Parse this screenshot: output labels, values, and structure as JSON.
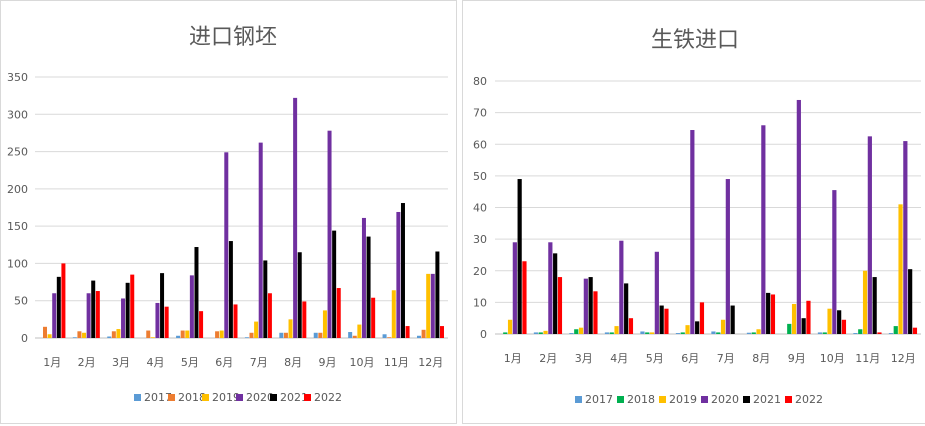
{
  "chart_data": [
    {
      "type": "bar",
      "title": "进口钢坯",
      "categories": [
        "1月",
        "2月",
        "3月",
        "4月",
        "5月",
        "6月",
        "7月",
        "8月",
        "9月",
        "10月",
        "11月",
        "12月"
      ],
      "ylim": [
        0,
        350
      ],
      "yticks": [
        0,
        50,
        100,
        150,
        200,
        250,
        300,
        350
      ],
      "grid": true,
      "legend": "bottom",
      "series": [
        {
          "name": "2017",
          "color": "#5b9bd5",
          "values": [
            0,
            1,
            2,
            0,
            3,
            0,
            1,
            7,
            7,
            8,
            5,
            3
          ]
        },
        {
          "name": "2018",
          "color": "#ed7d31",
          "values": [
            15,
            9,
            9,
            10,
            10,
            9,
            7,
            7,
            7,
            3,
            1,
            11
          ]
        },
        {
          "name": "2019",
          "color": "#ffc000",
          "values": [
            5,
            7,
            12,
            1,
            10,
            10,
            22,
            25,
            37,
            18,
            64,
            86
          ]
        },
        {
          "name": "2020",
          "color": "#7030a0",
          "values": [
            60,
            60,
            53,
            47,
            84,
            249,
            262,
            322,
            278,
            161,
            169,
            86
          ]
        },
        {
          "name": "2021",
          "color": "#000000",
          "values": [
            82,
            77,
            74,
            87,
            122,
            130,
            104,
            115,
            144,
            136,
            181,
            116
          ]
        },
        {
          "name": "2022",
          "color": "#ff0000",
          "values": [
            100,
            63,
            85,
            42,
            36,
            45,
            60,
            49,
            67,
            54,
            16,
            16
          ]
        }
      ]
    },
    {
      "type": "bar",
      "title": "生铁进口",
      "categories": [
        "1月",
        "2月",
        "3月",
        "4月",
        "5月",
        "6月",
        "7月",
        "8月",
        "9月",
        "10月",
        "11月",
        "12月"
      ],
      "ylim": [
        0,
        80
      ],
      "yticks": [
        0,
        10,
        20,
        30,
        40,
        50,
        60,
        70,
        80
      ],
      "grid": true,
      "legend": "bottom",
      "series": [
        {
          "name": "2017",
          "color": "#5b9bd5",
          "values": [
            0,
            0.5,
            0.3,
            0.5,
            0.8,
            0.3,
            0.8,
            0.4,
            0,
            0.5,
            0.3,
            0.3
          ]
        },
        {
          "name": "2018",
          "color": "#00b050",
          "values": [
            0.5,
            0.5,
            1.5,
            0.5,
            0.5,
            0.5,
            0.5,
            0.5,
            3.2,
            0.5,
            1.5,
            2.5
          ]
        },
        {
          "name": "2019",
          "color": "#ffc000",
          "values": [
            4.5,
            1,
            2,
            2.5,
            0.5,
            2.8,
            4.5,
            1.5,
            9.5,
            8,
            20,
            41
          ]
        },
        {
          "name": "2020",
          "color": "#7030a0",
          "values": [
            29,
            29,
            17.5,
            29.5,
            26,
            64.5,
            49,
            66,
            74,
            45.5,
            62.5,
            61
          ]
        },
        {
          "name": "2021",
          "color": "#000000",
          "values": [
            49,
            25.5,
            18,
            16,
            9,
            4,
            9,
            13,
            5,
            7.5,
            18,
            20.5
          ]
        },
        {
          "name": "2022",
          "color": "#ff0000",
          "values": [
            23,
            18,
            13.5,
            5,
            8,
            10,
            0,
            12.5,
            10.5,
            4.5,
            0.5,
            2
          ]
        }
      ]
    }
  ]
}
